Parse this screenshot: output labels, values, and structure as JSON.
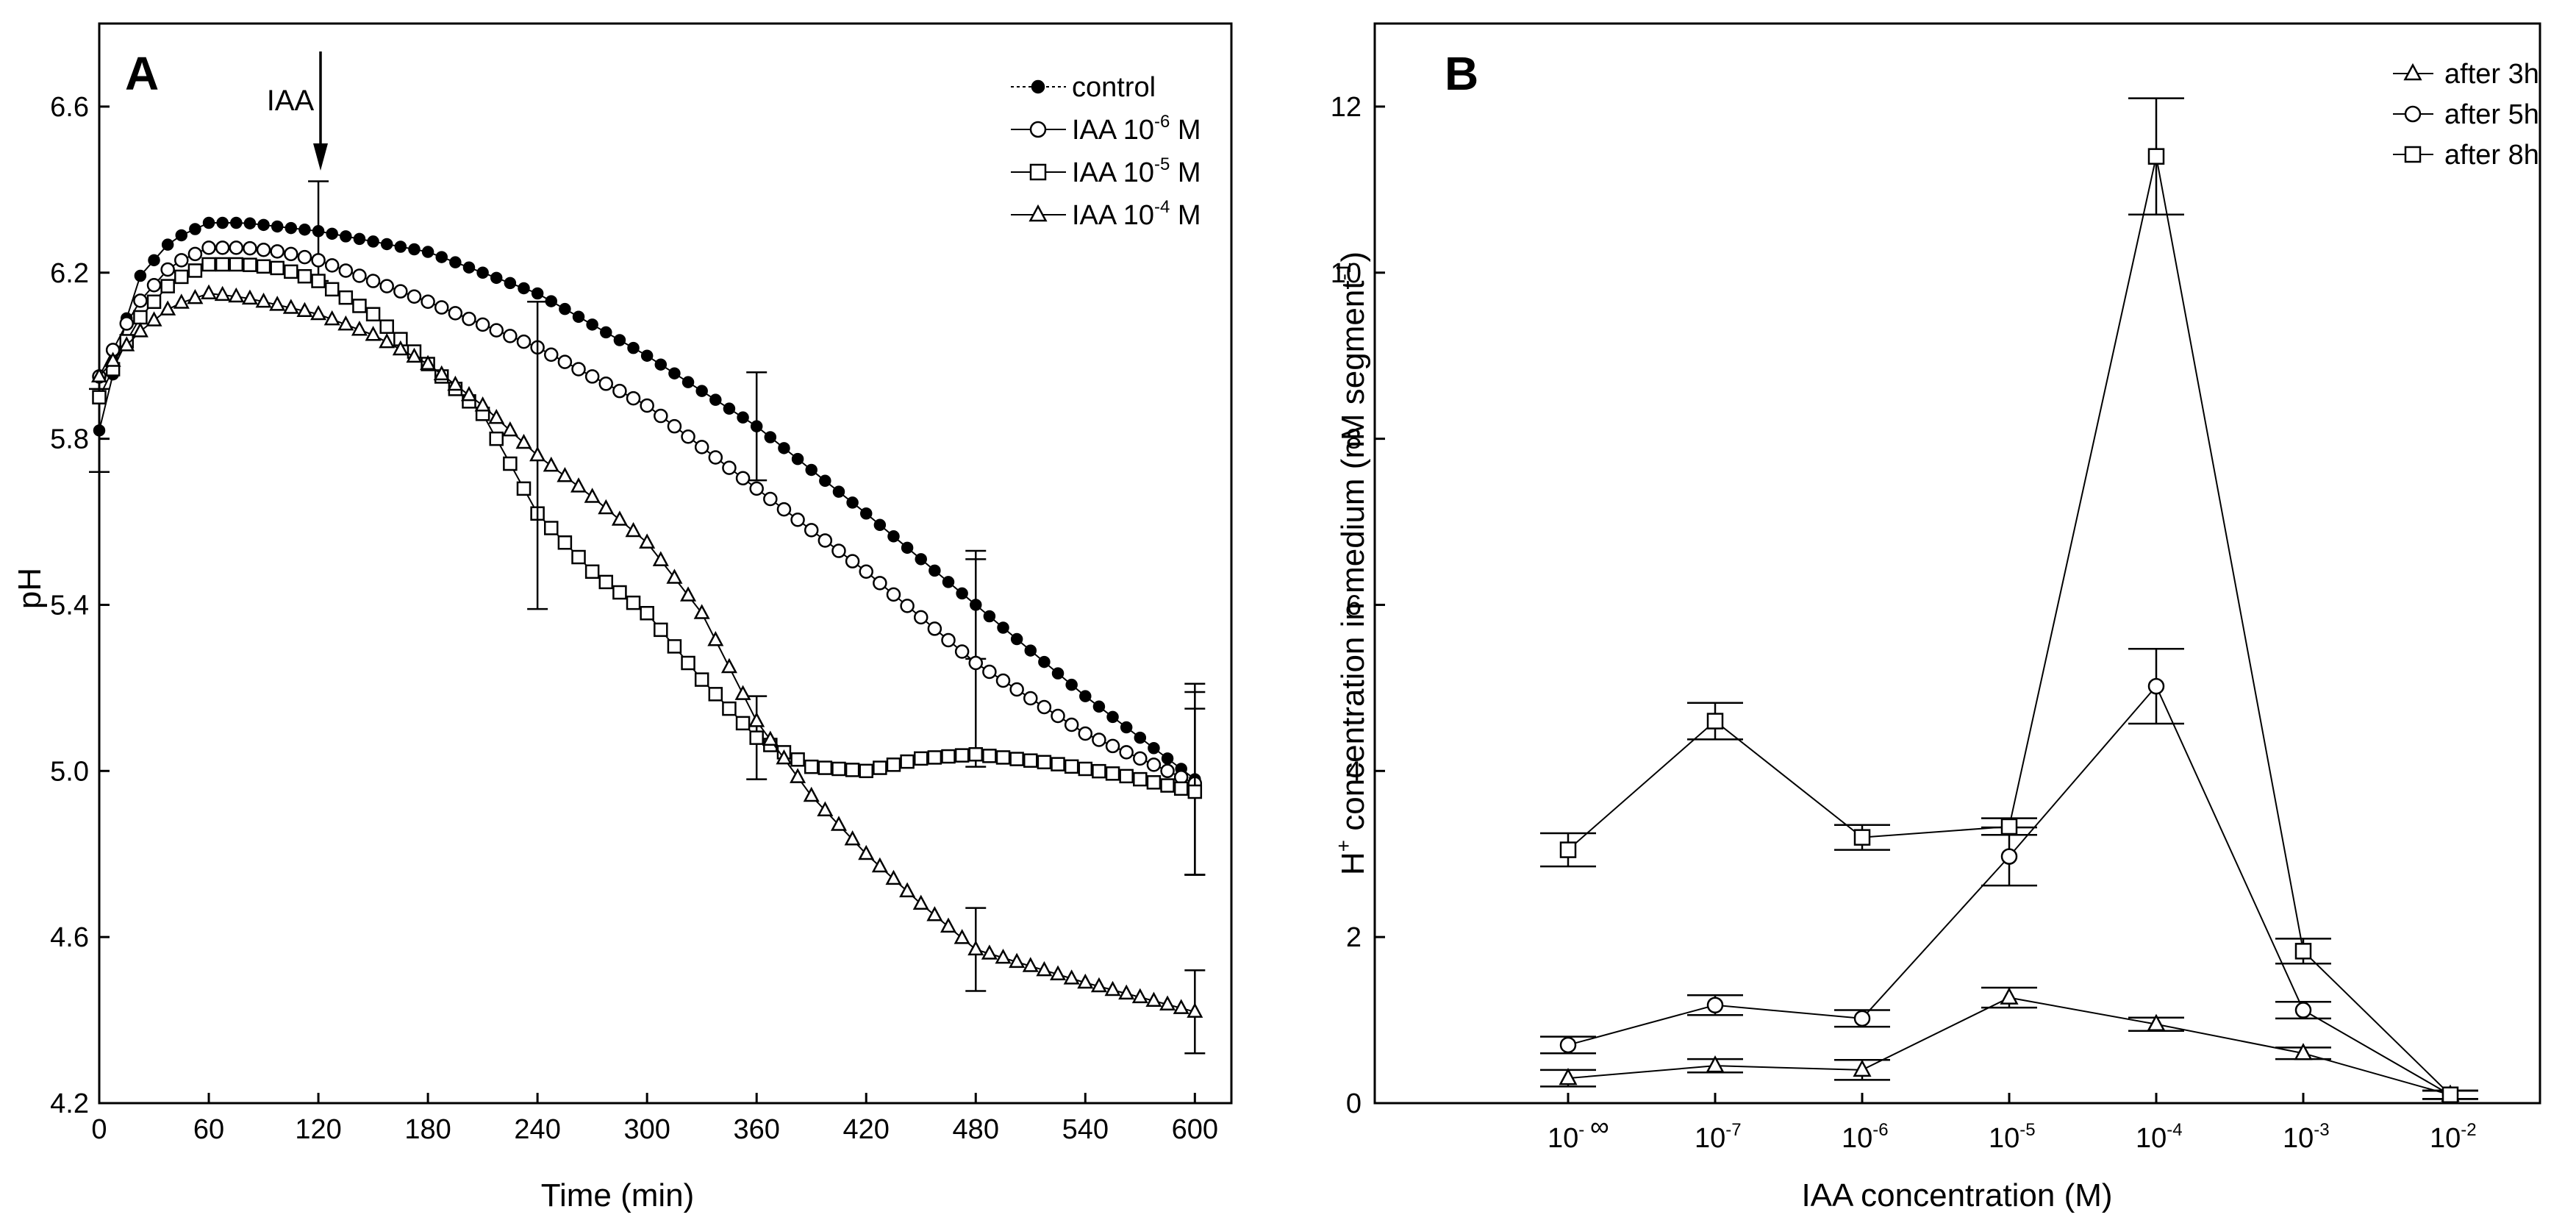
{
  "chart_data": [
    {
      "type": "line",
      "panel": "A",
      "xlabel": "Time (min)",
      "ylabel": "pH",
      "xlim": [
        0,
        620
      ],
      "ylim": [
        4.2,
        6.8
      ],
      "xticks": [
        0,
        60,
        120,
        180,
        240,
        300,
        360,
        420,
        480,
        540,
        600
      ],
      "yticks": [
        4.2,
        4.6,
        5.0,
        5.4,
        5.8,
        6.2,
        6.6
      ],
      "annotation": {
        "text": "IAA",
        "x": 120
      },
      "legend_position": "top-right",
      "series": [
        {
          "name": "control",
          "label": "control",
          "label_exp": "",
          "label_unit": "",
          "marker": "filled-circle",
          "x": [
            0,
            20,
            40,
            60,
            80,
            100,
            120,
            180,
            240,
            300,
            360,
            420,
            480,
            540,
            600
          ],
          "values": [
            5.82,
            6.18,
            6.28,
            6.32,
            6.32,
            6.31,
            6.3,
            6.25,
            6.15,
            6.0,
            5.83,
            5.62,
            5.4,
            5.18,
            4.98
          ],
          "error_bars": [
            {
              "x": 0,
              "err": 0.1
            },
            {
              "x": 120,
              "err": 0.12
            },
            {
              "x": 360,
              "err": 0.13
            },
            {
              "x": 480,
              "err": 0.13
            },
            {
              "x": 600,
              "err": 0.23
            }
          ]
        },
        {
          "name": "IAA 10^-6 M",
          "label": "IAA 10",
          "label_exp": "-6",
          "label_unit": " M",
          "marker": "open-circle",
          "x": [
            0,
            20,
            40,
            60,
            80,
            100,
            120,
            180,
            240,
            300,
            360,
            420,
            480,
            540,
            600
          ],
          "values": [
            5.95,
            6.12,
            6.22,
            6.26,
            6.26,
            6.25,
            6.23,
            6.13,
            6.02,
            5.88,
            5.68,
            5.48,
            5.26,
            5.09,
            4.97
          ],
          "error_bars": [
            {
              "x": 480,
              "err": 0.25
            },
            {
              "x": 600,
              "err": 0.22
            }
          ]
        },
        {
          "name": "IAA 10^-5 M",
          "label": "IAA 10",
          "label_exp": "-5",
          "label_unit": " M",
          "marker": "open-square",
          "x": [
            0,
            20,
            40,
            60,
            80,
            100,
            120,
            150,
            180,
            210,
            240,
            270,
            300,
            330,
            360,
            390,
            420,
            450,
            480,
            520,
            560,
            600
          ],
          "values": [
            5.9,
            6.08,
            6.18,
            6.22,
            6.22,
            6.21,
            6.18,
            6.1,
            5.98,
            5.86,
            5.62,
            5.48,
            5.38,
            5.22,
            5.08,
            5.01,
            5.0,
            5.03,
            5.04,
            5.02,
            4.99,
            4.95
          ],
          "error_bars": [
            {
              "x": 360,
              "err": 0.1
            },
            {
              "x": 600,
              "err": 0.2
            }
          ]
        },
        {
          "name": "IAA 10^-4 M",
          "label": "IAA 10",
          "label_exp": "-4",
          "label_unit": " M",
          "marker": "open-triangle",
          "x": [
            0,
            20,
            40,
            60,
            80,
            100,
            120,
            150,
            180,
            210,
            240,
            270,
            300,
            330,
            360,
            390,
            420,
            450,
            480,
            540,
            600
          ],
          "values": [
            5.95,
            6.05,
            6.12,
            6.15,
            6.14,
            6.12,
            6.1,
            6.05,
            5.98,
            5.88,
            5.76,
            5.66,
            5.55,
            5.38,
            5.12,
            4.94,
            4.8,
            4.68,
            4.57,
            4.49,
            4.42
          ],
          "error_bars": [
            {
              "x": 240,
              "err": 0.37
            },
            {
              "x": 480,
              "err": 0.1
            },
            {
              "x": 600,
              "err": 0.1
            }
          ]
        }
      ]
    },
    {
      "type": "line",
      "panel": "B",
      "xlabel": "IAA concentration (M)",
      "ylabel_prefix": "H",
      "ylabel_sup1": "+",
      "ylabel_mid": " concentration in medium (nM segment",
      "ylabel_sup2": "-1",
      "ylabel_end": ")",
      "categories": [
        {
          "base": "10",
          "exp": "-",
          "extra": "∞"
        },
        {
          "base": "10",
          "exp": "-7",
          "extra": ""
        },
        {
          "base": "10",
          "exp": "-6",
          "extra": ""
        },
        {
          "base": "10",
          "exp": "-5",
          "extra": ""
        },
        {
          "base": "10",
          "exp": "-4",
          "extra": ""
        },
        {
          "base": "10",
          "exp": "-3",
          "extra": ""
        },
        {
          "base": "10",
          "exp": "-2",
          "extra": ""
        }
      ],
      "ylim": [
        0,
        13
      ],
      "yticks": [
        0,
        2,
        4,
        6,
        8,
        10,
        12
      ],
      "legend_position": "top-right",
      "series": [
        {
          "name": "after 3h",
          "marker": "open-triangle",
          "values": [
            0.3,
            0.45,
            0.4,
            1.27,
            0.95,
            0.6,
            0.1
          ],
          "errors": [
            0.1,
            0.08,
            0.12,
            0.12,
            0.08,
            0.07,
            0.05
          ]
        },
        {
          "name": "after 5h",
          "marker": "open-circle",
          "values": [
            0.7,
            1.18,
            1.02,
            2.97,
            5.02,
            1.12,
            0.1
          ],
          "errors": [
            0.1,
            0.12,
            0.1,
            0.35,
            0.45,
            0.1,
            0.05
          ]
        },
        {
          "name": "after 8h",
          "marker": "open-square",
          "values": [
            3.05,
            4.6,
            3.2,
            3.33,
            11.4,
            1.83,
            0.1
          ],
          "errors": [
            0.2,
            0.22,
            0.15,
            0.1,
            0.7,
            0.15,
            0.05
          ]
        }
      ]
    }
  ]
}
